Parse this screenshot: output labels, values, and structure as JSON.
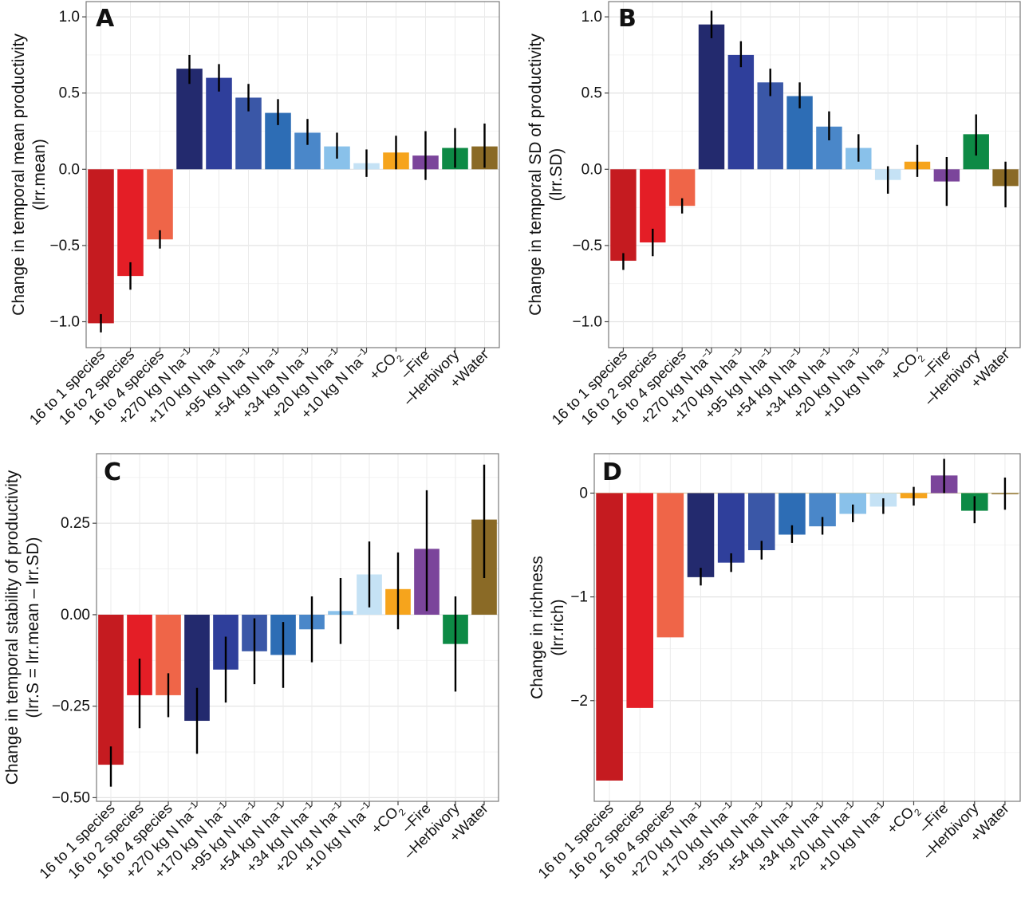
{
  "categories": [
    "16 to 1 species",
    "16 to 2 species",
    "16 to 4 species",
    "+270 kg N ha",
    "+170 kg N ha",
    "+95 kg N ha",
    "+54 kg N ha",
    "+34 kg N ha",
    "+20 kg N ha",
    "+10 kg N ha",
    "+CO",
    "–Fire",
    "–Herbivory",
    "+Water"
  ],
  "category_superscripts": [
    "",
    "",
    "",
    "−1",
    "−1",
    "−1",
    "−1",
    "−1",
    "−1",
    "−1",
    "",
    "",
    "",
    ""
  ],
  "category_subscripts": [
    "",
    "",
    "",
    "",
    "",
    "",
    "",
    "",
    "",
    "",
    "2",
    "",
    "",
    ""
  ],
  "colors": {
    "species1": "#c51b20",
    "species2": "#e41e26",
    "species4": "#ef6548",
    "n270": "#232a6e",
    "n170": "#2f3f9b",
    "n95": "#3a57a7",
    "n54": "#2d6db5",
    "n34": "#4a87c9",
    "n20": "#89c1ea",
    "n10": "#c5e2f5",
    "co2": "#f6a41c",
    "fire": "#7b459b",
    "herbivory": "#0d8a45",
    "water": "#8a6a26"
  },
  "chart_data": [
    {
      "type": "bar",
      "panel": "A",
      "ylabel_lines": [
        "Change in temporal mean productivity",
        "(lrr.mean)"
      ],
      "ylim": [
        -1.17,
        1.1
      ],
      "yticks": [
        -1.0,
        -0.5,
        0.0,
        0.5,
        1.0
      ],
      "ytick_labels": [
        "−1.0",
        "−0.5",
        "0.0",
        "0.5",
        "1.0"
      ],
      "grid": true,
      "values": [
        -1.01,
        -0.7,
        -0.46,
        0.66,
        0.6,
        0.47,
        0.37,
        0.24,
        0.15,
        0.04,
        0.11,
        0.09,
        0.14,
        0.15
      ],
      "err_low": [
        -1.07,
        -0.79,
        -0.52,
        0.56,
        0.51,
        0.38,
        0.29,
        0.16,
        0.07,
        -0.05,
        0.0,
        -0.07,
        0.01,
        0.01
      ],
      "err_high": [
        -0.95,
        -0.61,
        -0.4,
        0.75,
        0.69,
        0.56,
        0.46,
        0.33,
        0.24,
        0.13,
        0.22,
        0.25,
        0.27,
        0.3
      ]
    },
    {
      "type": "bar",
      "panel": "B",
      "ylabel_lines": [
        "Change in temporal SD of productivity",
        "(lrr.SD)"
      ],
      "ylim": [
        -1.17,
        1.1
      ],
      "yticks": [
        -1.0,
        -0.5,
        0.0,
        0.5,
        1.0
      ],
      "ytick_labels": [
        "−1.0",
        "−0.5",
        "0.0",
        "0.5",
        "1.0"
      ],
      "grid": true,
      "values": [
        -0.6,
        -0.48,
        -0.24,
        0.95,
        0.75,
        0.57,
        0.48,
        0.28,
        0.14,
        -0.07,
        0.05,
        -0.08,
        0.23,
        -0.11
      ],
      "err_low": [
        -0.66,
        -0.57,
        -0.29,
        0.86,
        0.67,
        0.48,
        0.4,
        0.19,
        0.05,
        -0.16,
        -0.05,
        -0.24,
        0.09,
        -0.25
      ],
      "err_high": [
        -0.55,
        -0.39,
        -0.19,
        1.04,
        0.84,
        0.66,
        0.57,
        0.38,
        0.23,
        0.02,
        0.16,
        0.08,
        0.36,
        0.05
      ]
    },
    {
      "type": "bar",
      "panel": "C",
      "ylabel_lines": [
        "Change in temporal stability of productivity",
        "(lrr.S = lrr.mean – lrr.SD)"
      ],
      "ylim": [
        -0.51,
        0.44
      ],
      "yticks": [
        -0.5,
        -0.25,
        0.0,
        0.25
      ],
      "ytick_labels": [
        "−0.50",
        "−0.25",
        "0.00",
        "0.25"
      ],
      "grid": true,
      "values": [
        -0.41,
        -0.22,
        -0.22,
        -0.29,
        -0.15,
        -0.1,
        -0.11,
        -0.04,
        0.01,
        0.11,
        0.07,
        0.18,
        -0.08,
        0.26
      ],
      "err_low": [
        -0.47,
        -0.31,
        -0.28,
        -0.38,
        -0.24,
        -0.19,
        -0.2,
        -0.13,
        -0.08,
        0.02,
        -0.04,
        0.01,
        -0.21,
        0.1
      ],
      "err_high": [
        -0.36,
        -0.12,
        -0.16,
        -0.2,
        -0.06,
        -0.01,
        -0.02,
        0.05,
        0.1,
        0.2,
        0.17,
        0.34,
        0.05,
        0.41
      ]
    },
    {
      "type": "bar",
      "panel": "D",
      "ylabel_lines": [
        "Change in richness",
        "(lrr.rich)"
      ],
      "ylim": [
        -2.97,
        0.38
      ],
      "yticks": [
        -2,
        -1,
        0
      ],
      "ytick_labels": [
        "−2",
        "−1",
        "0"
      ],
      "grid": true,
      "values": [
        -2.77,
        -2.07,
        -1.39,
        -0.81,
        -0.67,
        -0.55,
        -0.4,
        -0.32,
        -0.2,
        -0.13,
        -0.05,
        0.17,
        -0.17,
        -0.01
      ],
      "err_low": [
        -2.77,
        -2.07,
        -1.39,
        -0.89,
        -0.76,
        -0.64,
        -0.48,
        -0.4,
        -0.28,
        -0.2,
        -0.12,
        0.0,
        -0.29,
        -0.16
      ],
      "err_high": [
        -2.77,
        -2.07,
        -1.39,
        -0.72,
        -0.58,
        -0.46,
        -0.31,
        -0.23,
        -0.11,
        -0.05,
        0.06,
        0.33,
        -0.03,
        0.15
      ]
    }
  ]
}
